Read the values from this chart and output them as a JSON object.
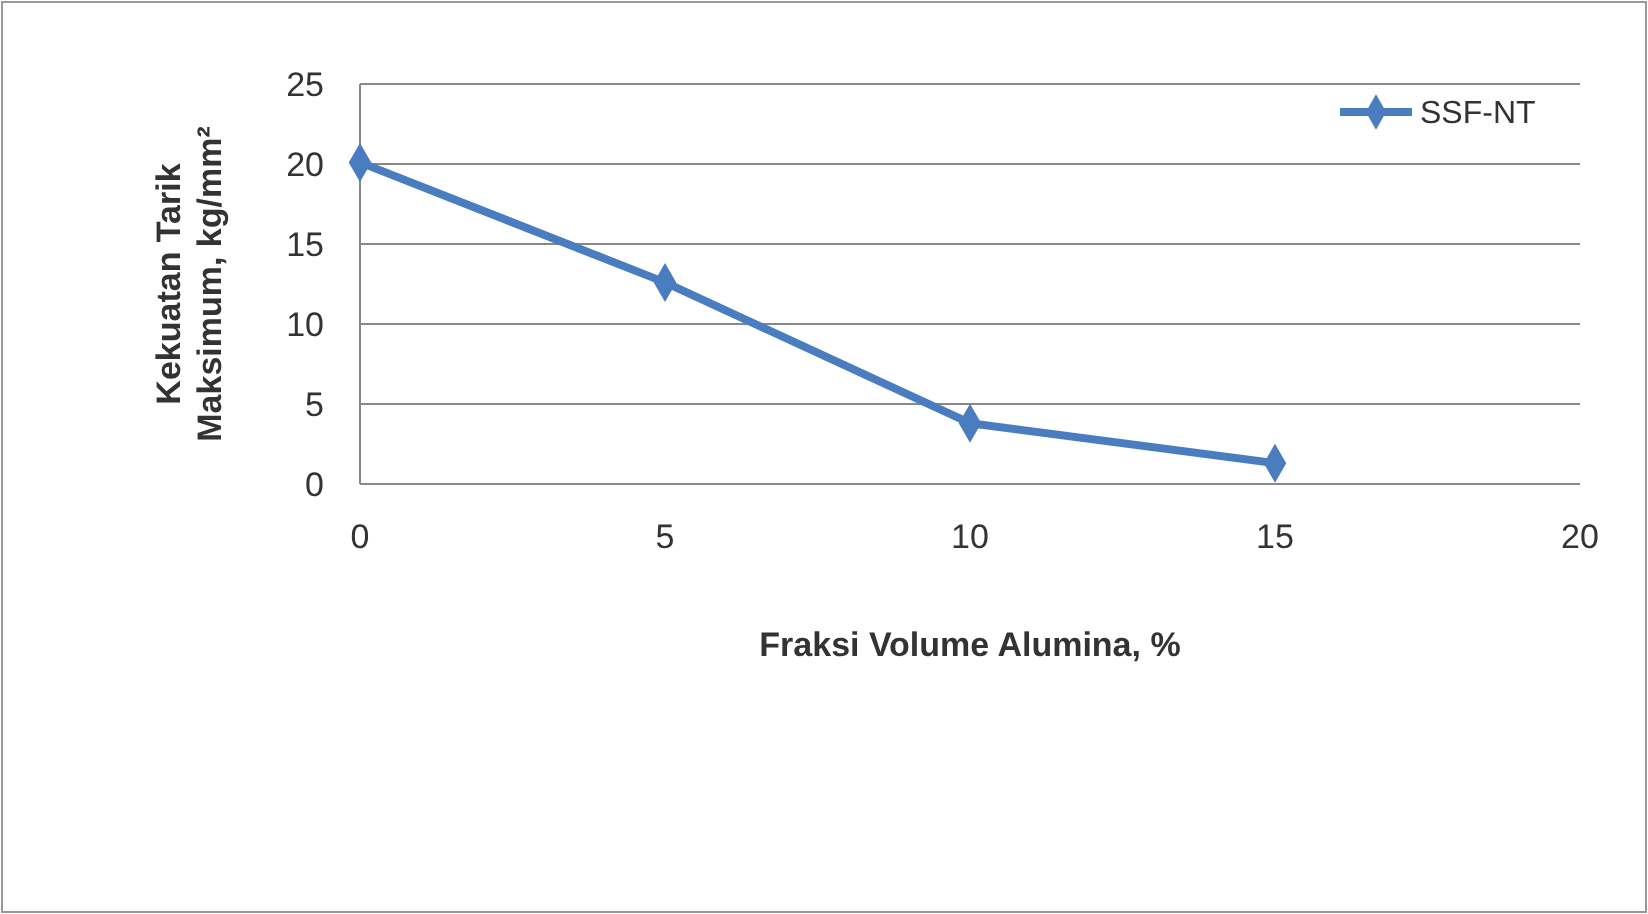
{
  "chart_data": {
    "type": "line",
    "xlabel": "Fraksi Volume Alumina, %",
    "ylabel": "Kekuatan Tarik Maksimum, kg/mm²",
    "x": [
      0,
      5,
      10,
      15
    ],
    "series": [
      {
        "name": "SSF-NT",
        "color": "#4a7cc0",
        "values": [
          20.1,
          12.6,
          3.8,
          1.3
        ]
      }
    ],
    "xlim": [
      0,
      20
    ],
    "xticks": [
      0,
      5,
      10,
      15,
      20
    ],
    "ylim": [
      0,
      25
    ],
    "yticks": [
      0,
      5,
      10,
      15,
      20,
      25
    ],
    "grid": "y",
    "legend": "top right",
    "marker": "diamond",
    "line_style": "solid"
  }
}
